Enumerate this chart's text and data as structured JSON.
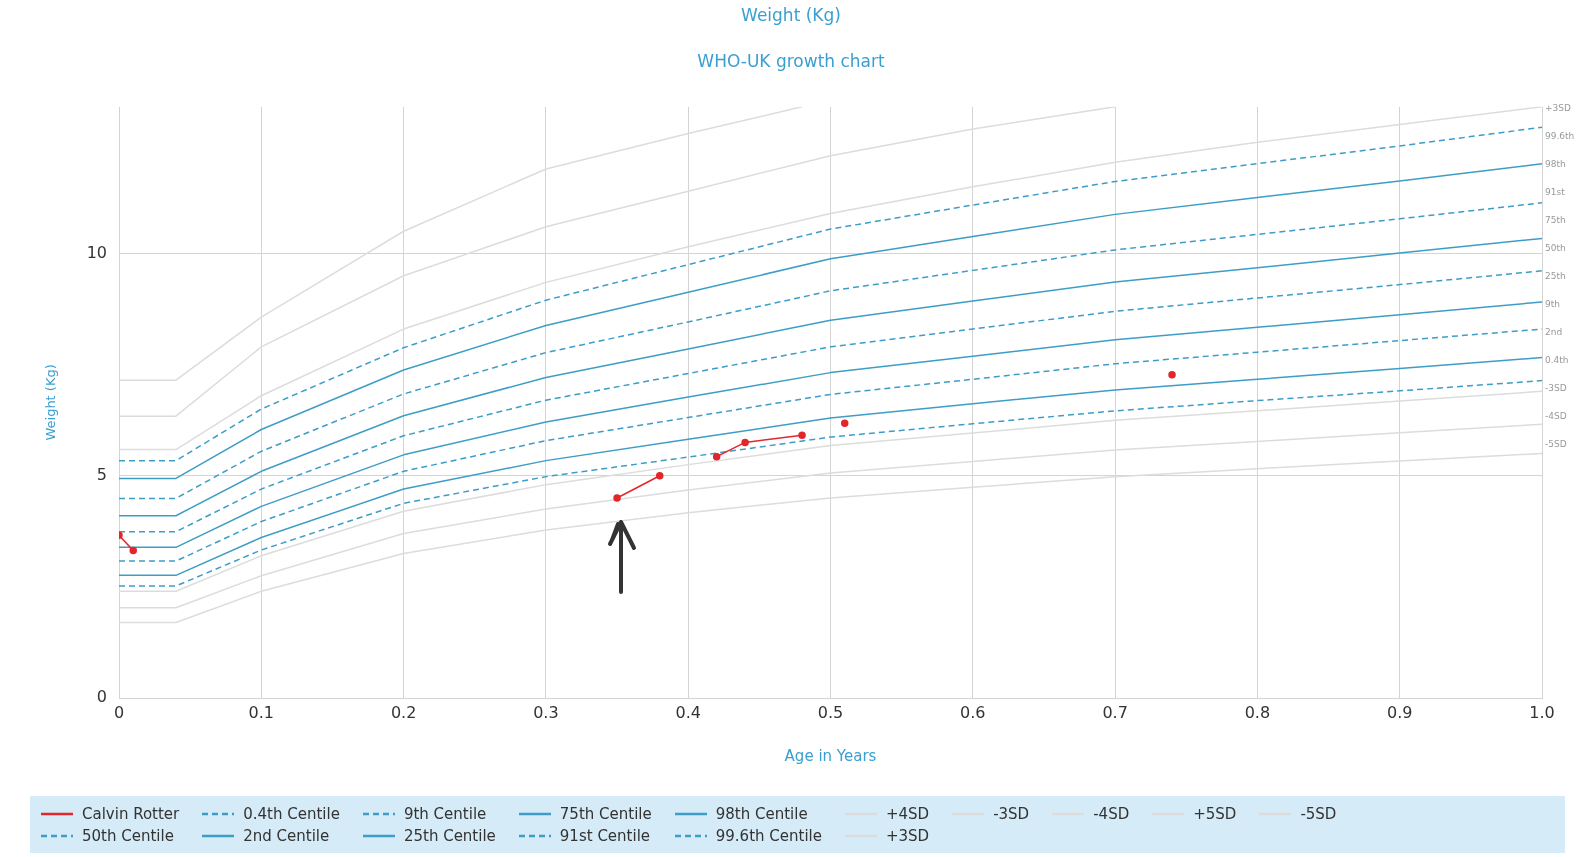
{
  "chart_data": {
    "type": "line",
    "title": "Weight (Kg)",
    "subtitle": "WHO-UK growth chart",
    "xlabel": "Age in Years",
    "ylabel": "Weight (Kg)",
    "x": [
      0,
      0.04,
      0.1,
      0.2,
      0.3,
      0.4,
      0.5,
      0.6,
      0.7,
      0.8,
      0.9,
      1.0
    ],
    "xlim": [
      0,
      1
    ],
    "xticks": [
      0,
      0.1,
      0.2,
      0.3,
      0.4,
      0.5,
      0.6,
      0.7,
      0.8,
      0.9,
      {
        "value": 1,
        "label": "1.0"
      }
    ],
    "ylim": [
      0,
      13.3
    ],
    "yticks": [
      0,
      5,
      10
    ],
    "grid": true,
    "legend": "bottom",
    "marker": "none",
    "series": [
      {
        "name": "Calvin Rotter",
        "color": "#e3262b",
        "marker": "circle",
        "x": [
          0,
          0.01,
          0.2,
          0.35,
          0.38,
          0.4,
          0.42,
          0.44,
          0.48,
          0.495,
          0.51,
          0.6,
          0.74
        ],
        "values": [
          3.66,
          3.32,
          null,
          4.5,
          5.0,
          null,
          5.43,
          5.75,
          5.91,
          null,
          6.18,
          null,
          7.27
        ]
      },
      {
        "name": "0.4th Centile",
        "color": "#3d9dc6",
        "line_style": "dashed",
        "values": [
          2.52,
          2.52,
          3.33,
          4.38,
          4.98,
          5.42,
          5.87,
          6.17,
          6.46,
          6.69,
          6.91,
          7.14
        ]
      },
      {
        "name": "9th Centile",
        "color": "#3d9dc6",
        "line_style": "dashed",
        "values": [
          3.08,
          3.08,
          3.97,
          5.1,
          5.79,
          6.31,
          6.83,
          7.17,
          7.52,
          7.78,
          8.04,
          8.3
        ]
      },
      {
        "name": "75th Centile",
        "color": "#3d9dc6",
        "line_style": "solid",
        "values": [
          4.1,
          4.1,
          5.1,
          6.35,
          7.21,
          7.85,
          8.5,
          8.93,
          9.36,
          9.68,
          10.01,
          10.34
        ]
      },
      {
        "name": "98th Centile",
        "color": "#3d9dc6",
        "line_style": "solid",
        "values": [
          4.94,
          4.94,
          6.04,
          7.38,
          8.38,
          9.13,
          9.88,
          10.38,
          10.88,
          11.26,
          11.63,
          12.02
        ]
      },
      {
        "name": "+4SD",
        "color": "#dcdcdc",
        "line_style": "solid",
        "x": [
          0,
          0.04,
          0.1,
          0.2,
          0.3,
          0.4,
          0.5,
          0.6,
          0.7
        ],
        "values": [
          6.34,
          6.34,
          7.9,
          9.5,
          10.6,
          11.4,
          12.2,
          12.8,
          13.3
        ]
      },
      {
        "name": "-3SD",
        "color": "#dcdcdc",
        "line_style": "solid",
        "values": [
          2.4,
          2.4,
          3.2,
          4.2,
          4.8,
          5.25,
          5.68,
          5.96,
          6.25,
          6.46,
          6.68,
          6.9
        ]
      },
      {
        "name": "-4SD",
        "color": "#dcdcdc",
        "line_style": "solid",
        "values": [
          2.03,
          2.03,
          2.75,
          3.7,
          4.25,
          4.68,
          5.06,
          5.32,
          5.58,
          5.77,
          5.97,
          6.16
        ]
      },
      {
        "name": "+5SD",
        "color": "#dcdcdc",
        "line_style": "solid",
        "x": [
          0,
          0.04,
          0.1,
          0.2,
          0.3,
          0.4,
          0.48
        ],
        "values": [
          7.15,
          7.15,
          8.57,
          10.5,
          11.9,
          12.7,
          13.3
        ]
      },
      {
        "name": "-5SD",
        "color": "#dcdcdc",
        "line_style": "solid",
        "values": [
          1.7,
          1.7,
          2.4,
          3.25,
          3.78,
          4.17,
          4.5,
          4.74,
          4.98,
          5.16,
          5.33,
          5.5
        ]
      },
      {
        "name": "50th Centile",
        "color": "#3d9dc6",
        "line_style": "dashed",
        "values": [
          3.74,
          3.74,
          4.7,
          5.9,
          6.7,
          7.3,
          7.9,
          8.3,
          8.7,
          9.0,
          9.3,
          9.61
        ]
      },
      {
        "name": "2nd Centile",
        "color": "#3d9dc6",
        "line_style": "solid",
        "values": [
          2.76,
          2.76,
          3.61,
          4.7,
          5.34,
          5.82,
          6.3,
          6.62,
          6.93,
          7.17,
          7.41,
          7.66
        ]
      },
      {
        "name": "25th Centile",
        "color": "#3d9dc6",
        "line_style": "solid",
        "values": [
          3.39,
          3.39,
          4.31,
          5.47,
          6.21,
          6.77,
          7.32,
          7.69,
          8.06,
          8.34,
          8.62,
          8.91
        ]
      },
      {
        "name": "91st Centile",
        "color": "#3d9dc6",
        "line_style": "dashed",
        "values": [
          4.49,
          4.49,
          5.55,
          6.84,
          7.77,
          8.46,
          9.16,
          9.62,
          10.08,
          10.43,
          10.78,
          11.14
        ]
      },
      {
        "name": "99.6th Centile",
        "color": "#3d9dc6",
        "line_style": "dashed",
        "values": [
          5.34,
          5.34,
          6.5,
          7.88,
          8.95,
          9.75,
          10.55,
          11.09,
          11.62,
          12.02,
          12.42,
          12.84
        ]
      },
      {
        "name": "+3SD",
        "color": "#dcdcdc",
        "line_style": "solid",
        "values": [
          5.59,
          5.59,
          6.8,
          8.3,
          9.35,
          10.15,
          10.9,
          11.5,
          12.05,
          12.5,
          12.9,
          13.3
        ]
      }
    ],
    "annotations": [
      "+3SD",
      "99.6th",
      "98th",
      "91st",
      "75th",
      "50th",
      "25th",
      "9th",
      "2nd",
      "0.4th",
      "-3SD",
      "-4SD",
      "-5SD"
    ]
  }
}
